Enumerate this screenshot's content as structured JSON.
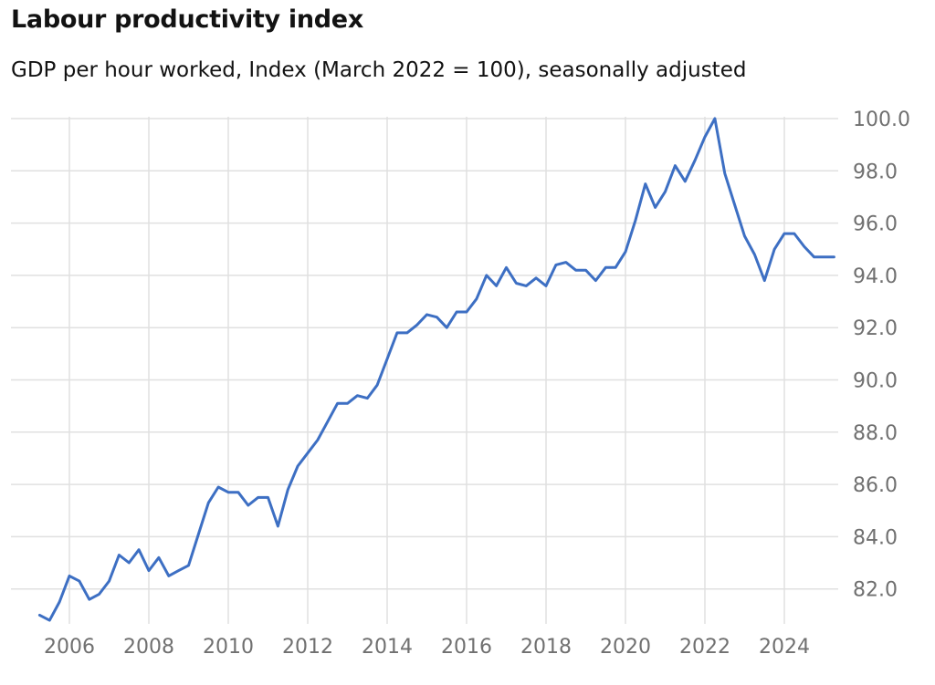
{
  "chart_data": {
    "type": "line",
    "title": "Labour productivity index",
    "subtitle": "GDP per hour worked, Index (March 2022 = 100), seasonally adjusted",
    "xlabel": "",
    "ylabel": "",
    "ylim": [
      81,
      100.3
    ],
    "xlim": [
      2005.0,
      2025.5
    ],
    "y_ticks": [
      82.0,
      84.0,
      86.0,
      88.0,
      90.0,
      92.0,
      94.0,
      96.0,
      98.0,
      100.0
    ],
    "y_tick_labels": [
      "82.0",
      "84.0",
      "86.0",
      "88.0",
      "90.0",
      "92.0",
      "94.0",
      "96.0",
      "98.0",
      "100.0"
    ],
    "x_ticks": [
      2006,
      2008,
      2010,
      2012,
      2014,
      2016,
      2018,
      2020,
      2022,
      2024
    ],
    "x_tick_labels": [
      "2006",
      "2008",
      "2010",
      "2012",
      "2014",
      "2016",
      "2018",
      "2020",
      "2022",
      "2024"
    ],
    "grid": true,
    "y_axis_side": "right",
    "series": [
      {
        "color": "#3d6fc3",
        "x": [
          2005.25,
          2005.5,
          2005.75,
          2006.0,
          2006.25,
          2006.5,
          2006.75,
          2007.0,
          2007.25,
          2007.5,
          2007.75,
          2008.0,
          2008.25,
          2008.5,
          2008.75,
          2009.0,
          2009.25,
          2009.5,
          2009.75,
          2010.0,
          2010.25,
          2010.5,
          2010.75,
          2011.0,
          2011.25,
          2011.5,
          2011.75,
          2012.0,
          2012.25,
          2012.5,
          2012.75,
          2013.0,
          2013.25,
          2013.5,
          2013.75,
          2014.0,
          2014.25,
          2014.5,
          2014.75,
          2015.0,
          2015.25,
          2015.5,
          2015.75,
          2016.0,
          2016.25,
          2016.5,
          2016.75,
          2017.0,
          2017.25,
          2017.5,
          2017.75,
          2018.0,
          2018.25,
          2018.5,
          2018.75,
          2019.0,
          2019.25,
          2019.5,
          2019.75,
          2020.0,
          2020.25,
          2020.5,
          2020.75,
          2021.0,
          2021.25,
          2021.5,
          2021.75,
          2022.0,
          2022.25,
          2022.5,
          2022.75,
          2023.0,
          2023.25,
          2023.5,
          2023.75,
          2024.0,
          2024.25,
          2024.5,
          2024.75,
          2025.0,
          2025.25
        ],
        "values": [
          81.0,
          80.8,
          81.5,
          82.5,
          82.3,
          81.6,
          81.8,
          82.3,
          83.3,
          83.0,
          83.5,
          82.7,
          83.2,
          82.5,
          82.7,
          82.9,
          84.1,
          85.3,
          85.9,
          85.7,
          85.7,
          85.2,
          85.5,
          85.5,
          84.4,
          85.8,
          86.7,
          87.2,
          87.7,
          88.4,
          89.1,
          89.1,
          89.4,
          89.3,
          89.8,
          90.8,
          91.8,
          91.8,
          92.1,
          92.5,
          92.4,
          92.0,
          92.6,
          92.6,
          93.1,
          94.0,
          93.6,
          94.3,
          93.7,
          93.6,
          93.9,
          93.6,
          94.4,
          94.5,
          94.2,
          94.2,
          93.8,
          94.3,
          94.3,
          94.9,
          96.1,
          97.5,
          96.6,
          97.2,
          98.2,
          97.6,
          98.4,
          99.3,
          100.0,
          97.9,
          96.7,
          95.5,
          94.8,
          93.8,
          95.0,
          95.6,
          95.6,
          95.1,
          94.7,
          94.7,
          94.7
        ]
      }
    ]
  }
}
